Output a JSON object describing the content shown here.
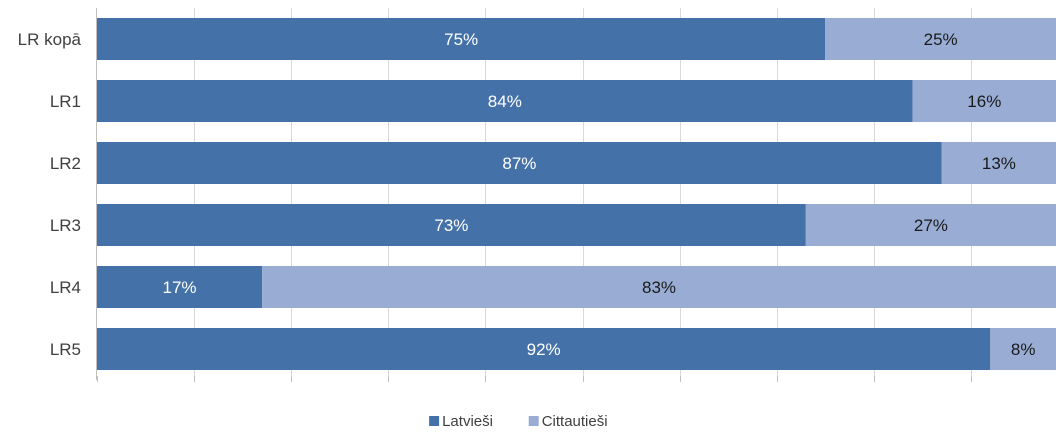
{
  "chart_data": {
    "type": "bar",
    "orientation": "horizontal",
    "stacked": true,
    "percent_stacked": true,
    "categories": [
      "LR kopā",
      "LR1",
      "LR2",
      "LR3",
      "LR4",
      "LR5"
    ],
    "series": [
      {
        "name": "Latvieši",
        "values": [
          75,
          84,
          87,
          73,
          17,
          92
        ],
        "labels": [
          "75%",
          "84%",
          "87%",
          "73%",
          "17%",
          "92%"
        ],
        "color": "#4472a8",
        "label_color": "#ffffff"
      },
      {
        "name": "Cittautieši",
        "values": [
          25,
          16,
          13,
          27,
          83,
          8
        ],
        "labels": [
          "25%",
          "16%",
          "13%",
          "27%",
          "83%",
          "8%"
        ],
        "color": "#98acd4",
        "label_color": "#1a1a1a"
      }
    ],
    "xlim": [
      0,
      100
    ],
    "grid": true,
    "legend_position": "bottom",
    "title": "",
    "xlabel": "",
    "ylabel": ""
  }
}
